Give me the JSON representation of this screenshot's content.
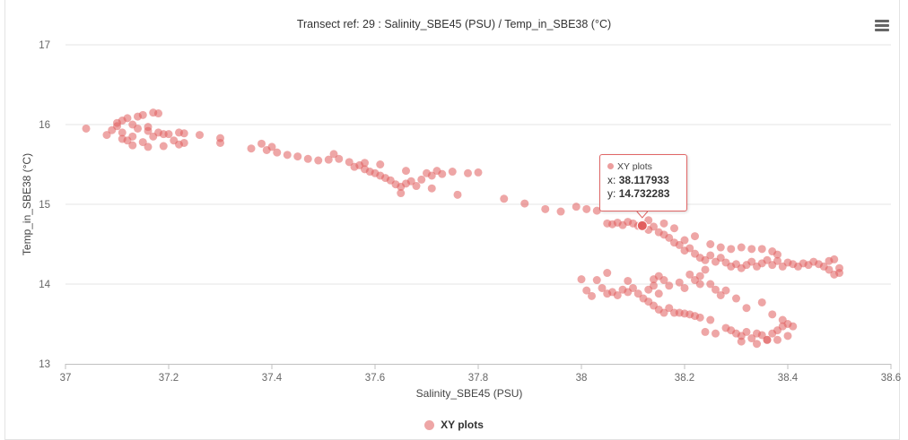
{
  "chart_data": {
    "type": "scatter",
    "title": "Transect ref: 29 : Salinity_SBE45 (PSU) / Temp_in_SBE38 (°C)",
    "xlabel": "Salinity_SBE45 (PSU)",
    "ylabel": "Temp_in_SBE38 (°C)",
    "xlim": [
      37,
      38.6
    ],
    "ylim": [
      13,
      17
    ],
    "xticks": [
      "37",
      "37.2",
      "37.4",
      "37.6",
      "37.8",
      "38",
      "38.2",
      "38.4",
      "38.6"
    ],
    "yticks": [
      "13",
      "14",
      "15",
      "16",
      "17"
    ],
    "grid": "horizontal",
    "legend_position": "bottom",
    "series": [
      {
        "name": "XY plots",
        "color": "#e05c5c",
        "points": [
          [
            37.04,
            15.95
          ],
          [
            37.08,
            15.87
          ],
          [
            37.09,
            15.93
          ],
          [
            37.1,
            16.02
          ],
          [
            37.1,
            15.98
          ],
          [
            37.11,
            16.05
          ],
          [
            37.11,
            15.9
          ],
          [
            37.12,
            15.8
          ],
          [
            37.12,
            16.08
          ],
          [
            37.13,
            16.0
          ],
          [
            37.13,
            15.85
          ],
          [
            37.14,
            15.95
          ],
          [
            37.14,
            16.1
          ],
          [
            37.15,
            15.78
          ],
          [
            37.15,
            16.12
          ],
          [
            37.16,
            15.92
          ],
          [
            37.16,
            15.97
          ],
          [
            37.17,
            16.15
          ],
          [
            37.17,
            15.85
          ],
          [
            37.18,
            15.9
          ],
          [
            37.18,
            16.14
          ],
          [
            37.19,
            15.88
          ],
          [
            37.2,
            15.88
          ],
          [
            37.21,
            15.8
          ],
          [
            37.22,
            15.75
          ],
          [
            37.22,
            15.9
          ],
          [
            37.23,
            15.77
          ],
          [
            37.23,
            15.89
          ],
          [
            37.26,
            15.87
          ],
          [
            37.3,
            15.83
          ],
          [
            37.3,
            15.77
          ],
          [
            37.13,
            15.74
          ],
          [
            37.16,
            15.72
          ],
          [
            37.19,
            15.73
          ],
          [
            37.11,
            15.82
          ],
          [
            37.36,
            15.7
          ],
          [
            37.38,
            15.76
          ],
          [
            37.39,
            15.68
          ],
          [
            37.4,
            15.72
          ],
          [
            37.41,
            15.65
          ],
          [
            37.43,
            15.62
          ],
          [
            37.45,
            15.6
          ],
          [
            37.47,
            15.57
          ],
          [
            37.49,
            15.55
          ],
          [
            37.51,
            15.56
          ],
          [
            37.52,
            15.63
          ],
          [
            37.53,
            15.57
          ],
          [
            37.55,
            15.53
          ],
          [
            37.56,
            15.47
          ],
          [
            37.57,
            15.49
          ],
          [
            37.58,
            15.44
          ],
          [
            37.59,
            15.41
          ],
          [
            37.6,
            15.39
          ],
          [
            37.61,
            15.36
          ],
          [
            37.61,
            15.5
          ],
          [
            37.62,
            15.33
          ],
          [
            37.63,
            15.3
          ],
          [
            37.64,
            15.25
          ],
          [
            37.65,
            15.22
          ],
          [
            37.66,
            15.26
          ],
          [
            37.67,
            15.29
          ],
          [
            37.68,
            15.23
          ],
          [
            37.69,
            15.31
          ],
          [
            37.7,
            15.39
          ],
          [
            37.71,
            15.36
          ],
          [
            37.72,
            15.42
          ],
          [
            37.73,
            15.38
          ],
          [
            37.75,
            15.41
          ],
          [
            37.76,
            15.12
          ],
          [
            37.78,
            15.39
          ],
          [
            37.8,
            15.4
          ],
          [
            37.66,
            15.42
          ],
          [
            37.71,
            15.2
          ],
          [
            37.58,
            15.52
          ],
          [
            37.65,
            15.14
          ],
          [
            37.85,
            15.07
          ],
          [
            37.89,
            15.01
          ],
          [
            37.93,
            14.94
          ],
          [
            37.96,
            14.91
          ],
          [
            37.99,
            14.97
          ],
          [
            38.01,
            14.94
          ],
          [
            38.03,
            14.92
          ],
          [
            38.05,
            14.76
          ],
          [
            38.06,
            14.75
          ],
          [
            38.07,
            14.77
          ],
          [
            38.08,
            14.74
          ],
          [
            38.09,
            14.78
          ],
          [
            38.1,
            14.76
          ],
          [
            38.11,
            14.73
          ],
          [
            38.12,
            14.75
          ],
          [
            38.13,
            14.8
          ],
          [
            38.13,
            14.68
          ],
          [
            38.14,
            14.72
          ],
          [
            38.15,
            14.65
          ],
          [
            38.16,
            14.62
          ],
          [
            38.16,
            14.76
          ],
          [
            38.17,
            14.58
          ],
          [
            38.18,
            14.52
          ],
          [
            38.18,
            14.7
          ],
          [
            38.19,
            14.49
          ],
          [
            38.2,
            14.55
          ],
          [
            38.2,
            14.42
          ],
          [
            38.21,
            14.45
          ],
          [
            38.22,
            14.38
          ],
          [
            38.22,
            14.6
          ],
          [
            38.23,
            14.33
          ],
          [
            38.24,
            14.3
          ],
          [
            38.25,
            14.36
          ],
          [
            38.26,
            14.28
          ],
          [
            38.27,
            14.33
          ],
          [
            38.28,
            14.27
          ],
          [
            38.29,
            14.22
          ],
          [
            38.3,
            14.25
          ],
          [
            38.31,
            14.2
          ],
          [
            38.32,
            14.24
          ],
          [
            38.33,
            14.28
          ],
          [
            38.34,
            14.22
          ],
          [
            38.35,
            14.26
          ],
          [
            38.36,
            14.3
          ],
          [
            38.37,
            14.24
          ],
          [
            38.38,
            14.29
          ],
          [
            38.39,
            14.22
          ],
          [
            38.4,
            14.27
          ],
          [
            38.41,
            14.25
          ],
          [
            38.42,
            14.22
          ],
          [
            38.43,
            14.26
          ],
          [
            38.44,
            14.24
          ],
          [
            38.45,
            14.28
          ],
          [
            38.46,
            14.25
          ],
          [
            38.47,
            14.22
          ],
          [
            38.48,
            14.29
          ],
          [
            38.49,
            14.31
          ],
          [
            38.5,
            14.2
          ],
          [
            38.5,
            14.14
          ],
          [
            38.49,
            14.12
          ],
          [
            38.48,
            14.18
          ],
          [
            38.25,
            14.5
          ],
          [
            38.27,
            14.46
          ],
          [
            38.29,
            14.44
          ],
          [
            38.31,
            14.46
          ],
          [
            38.33,
            14.44
          ],
          [
            38.35,
            14.44
          ],
          [
            38.37,
            14.41
          ],
          [
            38.38,
            14.37
          ],
          [
            38.24,
            14.18
          ],
          [
            38.23,
            14.1
          ],
          [
            38.23,
            14.0
          ],
          [
            38.22,
            14.05
          ],
          [
            38.21,
            14.12
          ],
          [
            38.2,
            13.95
          ],
          [
            38.19,
            14.02
          ],
          [
            38.0,
            14.06
          ],
          [
            38.01,
            13.92
          ],
          [
            38.02,
            13.85
          ],
          [
            38.03,
            14.05
          ],
          [
            38.04,
            13.95
          ],
          [
            38.05,
            13.88
          ],
          [
            38.05,
            14.14
          ],
          [
            38.06,
            13.9
          ],
          [
            38.07,
            13.86
          ],
          [
            38.08,
            13.93
          ],
          [
            38.09,
            14.04
          ],
          [
            38.09,
            13.9
          ],
          [
            38.1,
            13.95
          ],
          [
            38.11,
            13.88
          ],
          [
            38.12,
            13.82
          ],
          [
            38.13,
            13.78
          ],
          [
            38.13,
            13.93
          ],
          [
            38.14,
            13.73
          ],
          [
            38.14,
            13.98
          ],
          [
            38.15,
            13.68
          ],
          [
            38.15,
            13.88
          ],
          [
            38.16,
            13.64
          ],
          [
            38.17,
            13.7
          ],
          [
            38.18,
            13.64
          ],
          [
            38.16,
            14.05
          ],
          [
            38.15,
            14.1
          ],
          [
            38.17,
            13.98
          ],
          [
            38.14,
            14.06
          ],
          [
            38.19,
            13.64
          ],
          [
            38.2,
            13.63
          ],
          [
            38.21,
            13.62
          ],
          [
            38.22,
            13.6
          ],
          [
            38.23,
            13.58
          ],
          [
            38.25,
            13.55
          ],
          [
            38.24,
            13.4
          ],
          [
            38.26,
            13.38
          ],
          [
            38.28,
            13.45
          ],
          [
            38.29,
            13.42
          ],
          [
            38.3,
            13.38
          ],
          [
            38.31,
            13.35
          ],
          [
            38.31,
            13.28
          ],
          [
            38.32,
            13.4
          ],
          [
            38.33,
            13.32
          ],
          [
            38.34,
            13.38
          ],
          [
            38.35,
            13.36
          ],
          [
            38.36,
            13.3
          ],
          [
            38.37,
            13.38
          ],
          [
            38.38,
            13.42
          ],
          [
            38.38,
            13.3
          ],
          [
            38.39,
            13.55
          ],
          [
            38.39,
            13.47
          ],
          [
            38.4,
            13.5
          ],
          [
            38.41,
            13.47
          ],
          [
            38.4,
            13.35
          ],
          [
            38.37,
            13.62
          ],
          [
            38.35,
            13.77
          ],
          [
            38.32,
            13.7
          ],
          [
            38.3,
            13.82
          ],
          [
            38.27,
            13.86
          ],
          [
            38.26,
            13.93
          ],
          [
            38.25,
            14.0
          ],
          [
            38.28,
            13.92
          ],
          [
            38.36,
            13.3
          ],
          [
            38.34,
            13.25
          ]
        ]
      }
    ]
  },
  "tooltip": {
    "series": "XY plots",
    "x_label": "x:",
    "x_value": "38.117933",
    "y_label": "y:",
    "y_value": "14.732283",
    "point": [
      38.117933,
      14.732283
    ]
  },
  "legend": {
    "label": "XY plots"
  },
  "menu_icon": "hamburger-icon"
}
